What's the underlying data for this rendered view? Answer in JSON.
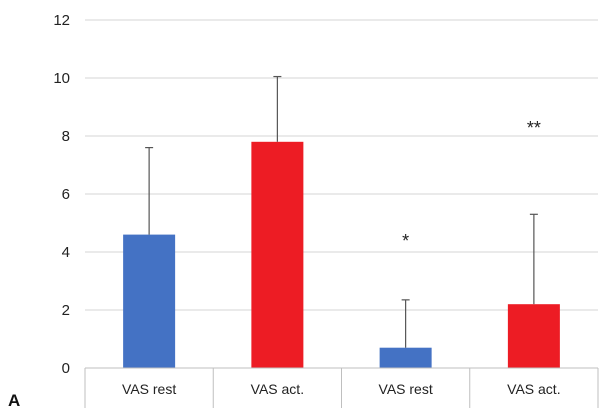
{
  "chart_data": {
    "type": "bar",
    "panel_label": "A",
    "categories": [
      "VAS rest",
      "VAS act.",
      "VAS rest",
      "VAS act."
    ],
    "values": [
      4.6,
      7.8,
      0.7,
      2.2
    ],
    "error_bars_upper": [
      7.6,
      10.05,
      2.35,
      5.3
    ],
    "bar_colors": [
      "#4472C4",
      "#ED1C24",
      "#4472C4",
      "#ED1C24"
    ],
    "significance_markers": [
      "",
      "",
      "*",
      "**"
    ],
    "significance_marker_values": [
      null,
      null,
      4.45,
      8.35
    ],
    "ylim": [
      0,
      12
    ],
    "y_ticks": [
      "0",
      "2",
      "4",
      "6",
      "8",
      "10",
      "12"
    ],
    "grid": true,
    "xlabel": "",
    "ylabel": "",
    "title": ""
  }
}
